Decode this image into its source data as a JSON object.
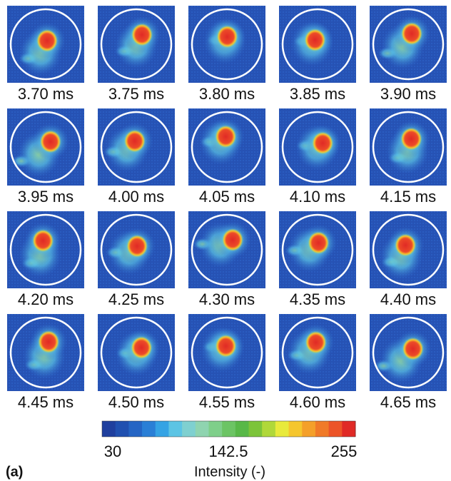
{
  "panels": [
    "3.70 ms",
    "3.75 ms",
    "3.80 ms",
    "3.85 ms",
    "3.90 ms",
    "3.95 ms",
    "4.00 ms",
    "4.05 ms",
    "4.10 ms",
    "4.15 ms",
    "4.20 ms",
    "4.25 ms",
    "4.30 ms",
    "4.35 ms",
    "4.40 ms",
    "4.45 ms",
    "4.50 ms",
    "4.55 ms",
    "4.60 ms",
    "4.65 ms"
  ],
  "colorbar": {
    "ticks": [
      30,
      142.5,
      255
    ],
    "label": "Intensity (-)",
    "colors": [
      "#1f3f9e",
      "#2050b0",
      "#2565c4",
      "#2a7fd6",
      "#35a3e4",
      "#5cc4e4",
      "#7fd0d0",
      "#8fd4b0",
      "#7fcf8a",
      "#6cc464",
      "#58b848",
      "#7cc43a",
      "#b0d83a",
      "#e8ea3c",
      "#f5c62e",
      "#f4a02a",
      "#f07a28",
      "#ec5428",
      "#e02a26"
    ]
  },
  "panel_label": "(a)"
}
